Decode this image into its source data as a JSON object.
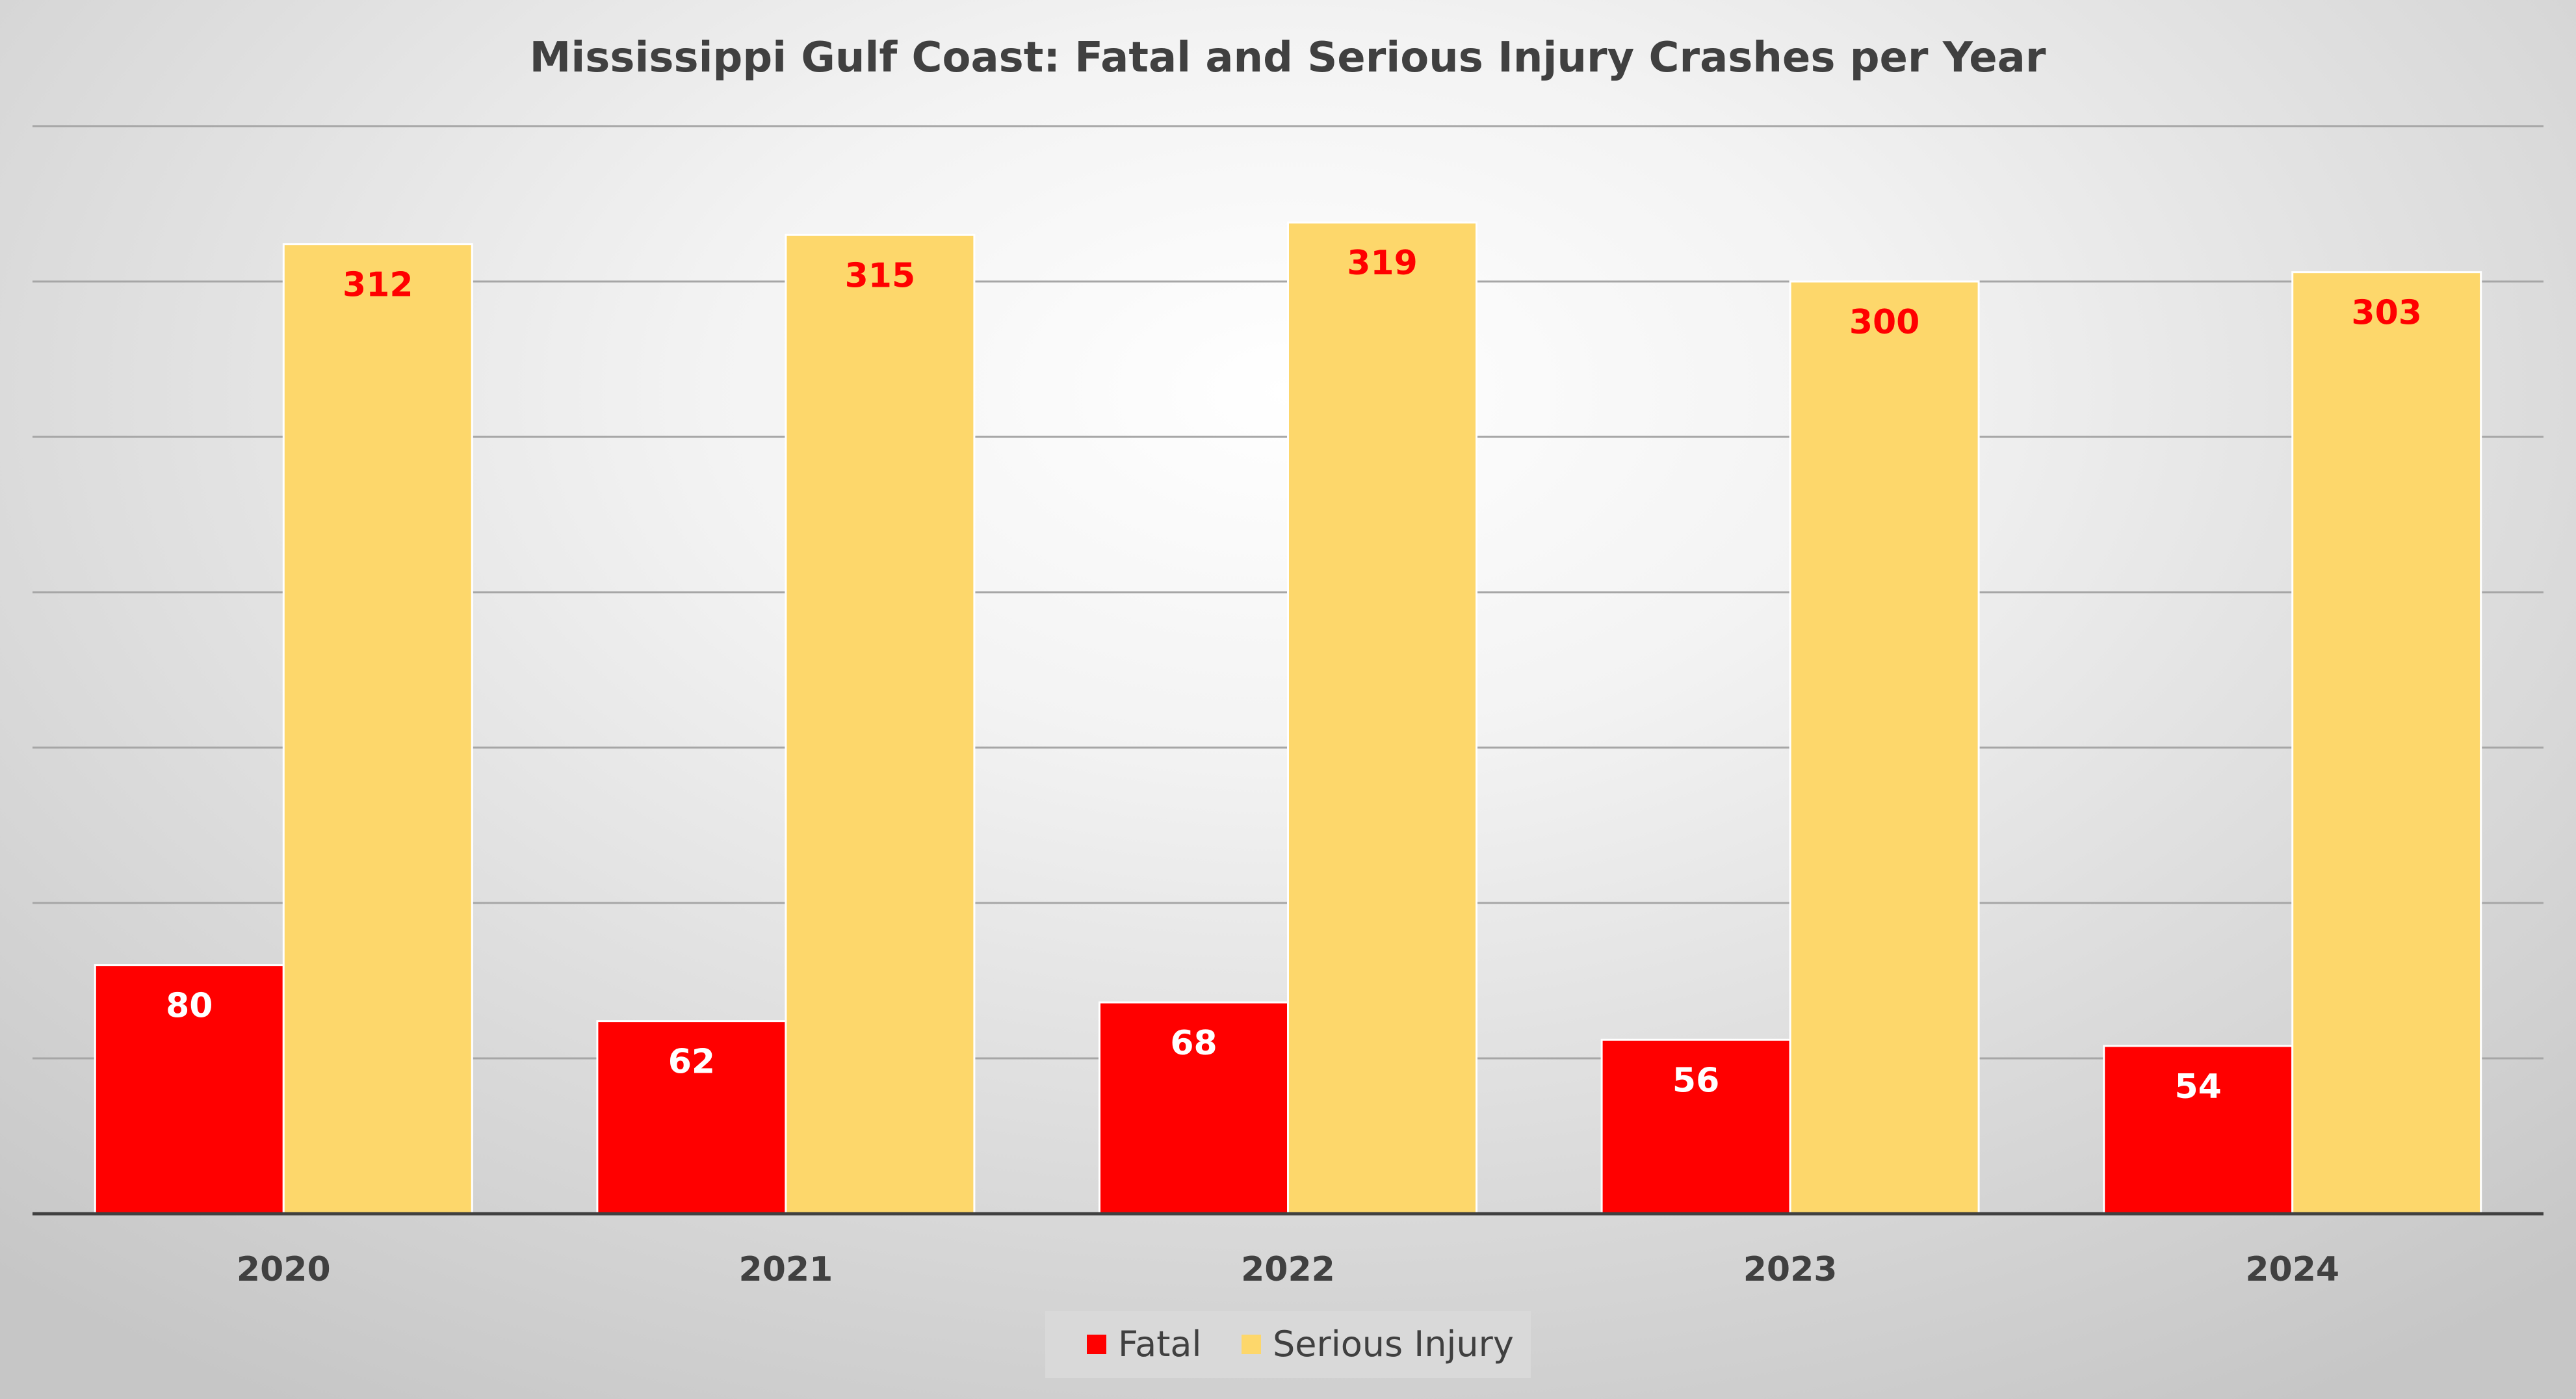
{
  "chart_data": {
    "type": "bar",
    "title": "Mississippi Gulf Coast: Fatal and Serious Injury Crashes per Year",
    "categories": [
      "2020",
      "2021",
      "2022",
      "2023",
      "2024"
    ],
    "series": [
      {
        "name": "Fatal",
        "color": "#ff0000",
        "label_color": "#ffffff",
        "values": [
          80,
          62,
          68,
          56,
          54
        ]
      },
      {
        "name": "Serious Injury",
        "color": "#fdd76b",
        "label_color": "#ff0000",
        "values": [
          312,
          315,
          319,
          300,
          303
        ]
      }
    ],
    "xlabel": "",
    "ylabel": "",
    "ylim": [
      0,
      350
    ],
    "grid": true,
    "grid_step": 50,
    "y_tick_labels_shown": false,
    "legend_position": "bottom-center"
  }
}
